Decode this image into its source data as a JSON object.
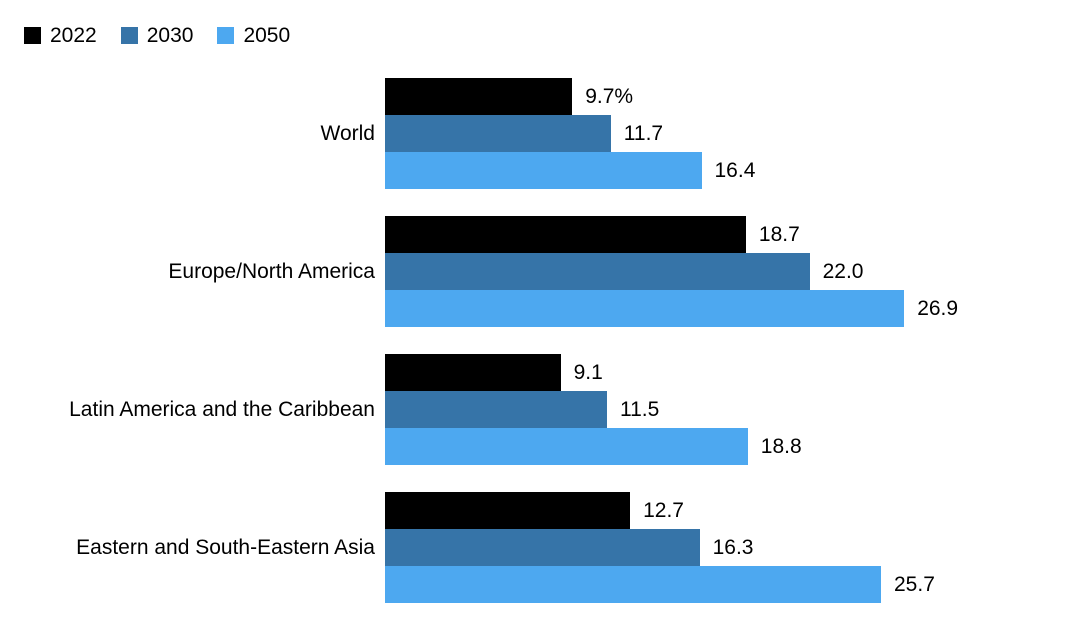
{
  "chart_data": {
    "type": "bar",
    "orientation": "horizontal",
    "title": "",
    "unit": "%",
    "grid": false,
    "legend_position": "top-left",
    "xlim": [
      0,
      28
    ],
    "categories": [
      "World",
      "Europe/North America",
      "Latin America and the Caribbean",
      "Eastern and South-Eastern Asia"
    ],
    "series": [
      {
        "name": "2022",
        "color": "#000000",
        "values": [
          9.7,
          18.7,
          9.1,
          12.7
        ]
      },
      {
        "name": "2030",
        "color": "#3674A8",
        "values": [
          11.7,
          22.0,
          11.5,
          16.3
        ]
      },
      {
        "name": "2050",
        "color": "#4DA8F0",
        "values": [
          16.4,
          26.9,
          18.8,
          25.7
        ]
      }
    ],
    "value_labels": [
      [
        "9.7%",
        "18.7",
        "9.1",
        "12.7"
      ],
      [
        "11.7",
        "22.0",
        "11.5",
        "16.3"
      ],
      [
        "16.4",
        "26.9",
        "18.8",
        "25.7"
      ]
    ]
  }
}
